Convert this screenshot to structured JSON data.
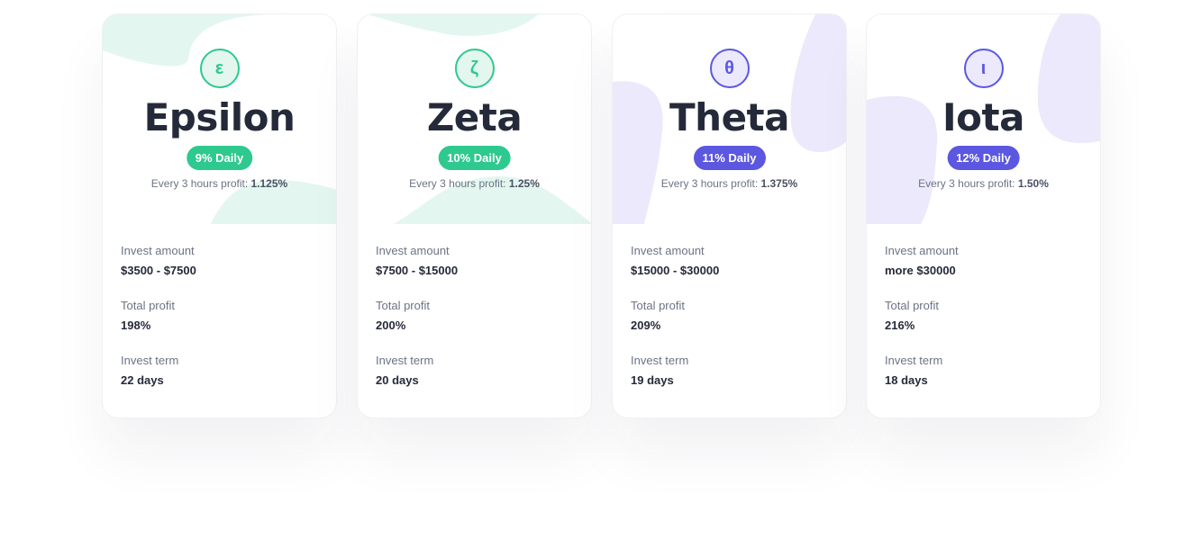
{
  "labels": {
    "profit_prefix": "Every 3 hours profit: ",
    "invest_amount": "Invest amount",
    "total_profit": "Total profit",
    "invest_term": "Invest term"
  },
  "colors": {
    "green": "#2ec98f",
    "green_soft": "#e3f6ef",
    "purple": "#5b57e0",
    "purple_soft": "#ebe9fb"
  },
  "plans": [
    {
      "name": "Epsilon",
      "symbol": "ε",
      "daily": "9% Daily",
      "profit": "1.125%",
      "invest_amount": "$3500 - $7500",
      "total_profit": "198%",
      "invest_term": "22 days",
      "theme": "green"
    },
    {
      "name": "Zeta",
      "symbol": "ζ",
      "daily": "10% Daily",
      "profit": "1.25%",
      "invest_amount": "$7500 - $15000",
      "total_profit": "200%",
      "invest_term": "20 days",
      "theme": "green"
    },
    {
      "name": "Theta",
      "symbol": "θ",
      "daily": "11% Daily",
      "profit": "1.375%",
      "invest_amount": "$15000 - $30000",
      "total_profit": "209%",
      "invest_term": "19 days",
      "theme": "purple"
    },
    {
      "name": "Iota",
      "symbol": "ι",
      "daily": "12% Daily",
      "profit": "1.50%",
      "invest_amount": "more $30000",
      "total_profit": "216%",
      "invest_term": "18 days",
      "theme": "purple"
    }
  ]
}
